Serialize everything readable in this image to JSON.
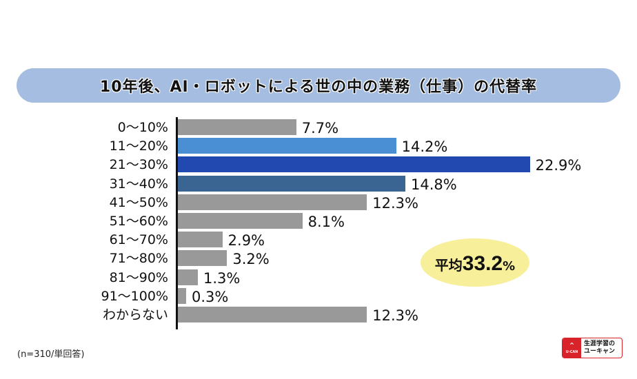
{
  "chart_data": {
    "type": "bar",
    "orientation": "horizontal",
    "title": "10年後、AI・ロボットによる世の中の業務（仕事）の代替率",
    "categories": [
      "0〜10%",
      "11〜20%",
      "21〜30%",
      "31〜40%",
      "41〜50%",
      "51〜60%",
      "61〜70%",
      "71〜80%",
      "81〜90%",
      "91〜100%",
      "わからない"
    ],
    "values": [
      7.7,
      14.2,
      22.9,
      14.8,
      12.3,
      8.1,
      2.9,
      3.2,
      1.3,
      0.3,
      12.3
    ],
    "value_labels": [
      "7.7%",
      "14.2%",
      "22.9%",
      "14.8%",
      "12.3%",
      "8.1%",
      "2.9%",
      "3.2%",
      "1.3%",
      "0.3%",
      "12.3%"
    ],
    "colors": [
      "#999999",
      "#4a8fd4",
      "#2149b0",
      "#3a6593",
      "#999999",
      "#999999",
      "#999999",
      "#999999",
      "#999999",
      "#999999",
      "#999999"
    ],
    "unit": "%",
    "annotation": {
      "label": "平均",
      "value": "33.2",
      "unit": "%"
    },
    "note": "(n=310/単回答)",
    "xlabel": "",
    "ylabel": "",
    "grid": false,
    "legend": "none"
  },
  "logo": {
    "mark": "U-CAN",
    "line1": "生涯学習の",
    "line2": "ユーキャン",
    "color": "#d8232a"
  }
}
